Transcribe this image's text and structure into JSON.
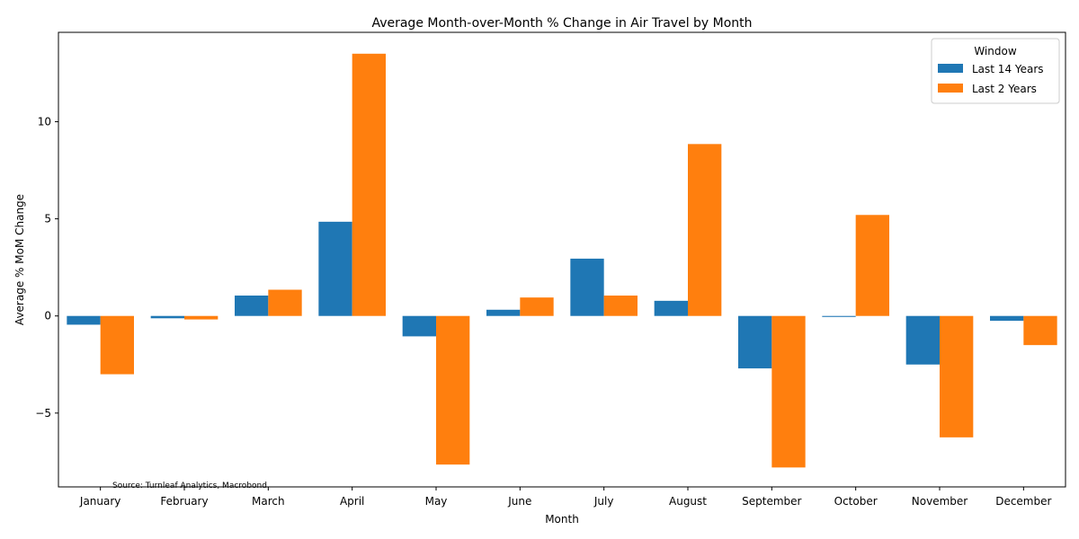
{
  "chart_data": {
    "type": "bar",
    "title": "Average Month-over-Month % Change in Air Travel by Month",
    "xlabel": "Month",
    "ylabel": "Average % MoM Change",
    "categories": [
      "January",
      "February",
      "March",
      "April",
      "May",
      "June",
      "July",
      "August",
      "September",
      "October",
      "November",
      "December"
    ],
    "series": [
      {
        "name": "Last 14 Years",
        "color": "#1f77b4",
        "values": [
          -0.45,
          -0.12,
          1.05,
          4.85,
          -1.05,
          0.32,
          2.95,
          0.78,
          -2.7,
          -0.05,
          -2.5,
          -0.25
        ]
      },
      {
        "name": "Last 2 Years",
        "color": "#ff7f0e",
        "values": [
          -3.0,
          -0.18,
          1.35,
          13.5,
          -7.65,
          0.95,
          1.05,
          8.85,
          -7.8,
          5.2,
          -6.25,
          -1.5
        ]
      }
    ],
    "ylim": [
      -8.8,
      14.6
    ],
    "yticks": [
      -5,
      0,
      5,
      10
    ],
    "ytick_labels": [
      "−5",
      "0",
      "5",
      "10"
    ],
    "legend": {
      "title": "Window",
      "placement": "top-right"
    },
    "grid": false,
    "source_note": "Source: Turnleaf Analytics, Macrobond"
  }
}
